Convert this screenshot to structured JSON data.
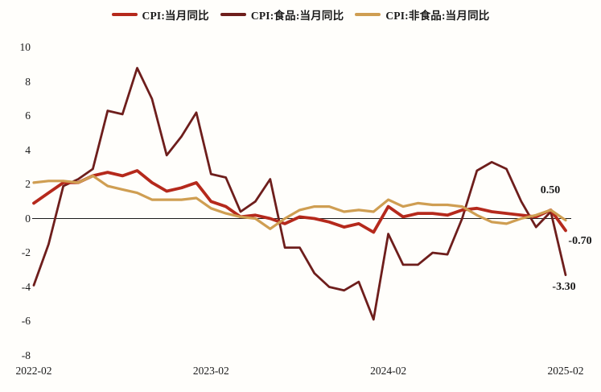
{
  "page": {
    "background": "#fffefb"
  },
  "chart_data": {
    "type": "line",
    "title": "",
    "xlabel": "",
    "ylabel": "",
    "grid": false,
    "legend_position": "top-center",
    "zero_line": true,
    "ylim": [
      -8,
      10
    ],
    "yticks": [
      "10",
      "8",
      "6",
      "4",
      "2",
      "0",
      "-2",
      "-4",
      "-6",
      "-8"
    ],
    "xticks": [
      "2022-02",
      "2023-02",
      "2024-02",
      "2025-02"
    ],
    "xtick_month_index": [
      0,
      12,
      24,
      36
    ],
    "x": [
      "2022-02",
      "2022-03",
      "2022-04",
      "2022-05",
      "2022-06",
      "2022-07",
      "2022-08",
      "2022-09",
      "2022-10",
      "2022-11",
      "2022-12",
      "2023-01",
      "2023-02",
      "2023-03",
      "2023-04",
      "2023-05",
      "2023-06",
      "2023-07",
      "2023-08",
      "2023-09",
      "2023-10",
      "2023-11",
      "2023-12",
      "2024-01",
      "2024-02",
      "2024-03",
      "2024-04",
      "2024-05",
      "2024-06",
      "2024-07",
      "2024-08",
      "2024-09",
      "2024-10",
      "2024-11",
      "2024-12",
      "2025-01",
      "2025-02"
    ],
    "series": [
      {
        "name": "CPI:当月同比",
        "color": "#b5291c",
        "values": [
          0.9,
          1.5,
          2.1,
          2.1,
          2.5,
          2.7,
          2.5,
          2.8,
          2.1,
          1.6,
          1.8,
          2.1,
          1.0,
          0.7,
          0.1,
          0.2,
          0.0,
          -0.3,
          0.1,
          0.0,
          -0.2,
          -0.5,
          -0.3,
          -0.8,
          0.7,
          0.1,
          0.3,
          0.3,
          0.2,
          0.5,
          0.6,
          0.4,
          0.3,
          0.2,
          0.1,
          0.5,
          -0.7
        ]
      },
      {
        "name": "CPI:食品:当月同比",
        "color": "#6e1e1c",
        "values": [
          -3.9,
          -1.5,
          1.9,
          2.3,
          2.9,
          6.3,
          6.1,
          8.8,
          7.0,
          3.7,
          4.8,
          6.2,
          2.6,
          2.4,
          0.4,
          1.0,
          2.3,
          -1.7,
          -1.7,
          -3.2,
          -4.0,
          -4.2,
          -3.7,
          -5.9,
          -0.9,
          -2.7,
          -2.7,
          -2.0,
          -2.1,
          0.0,
          2.8,
          3.3,
          2.9,
          1.0,
          -0.5,
          0.4,
          -3.3
        ]
      },
      {
        "name": "CPI:非食品:当月同比",
        "color": "#cf9e52",
        "values": [
          2.1,
          2.2,
          2.2,
          2.1,
          2.5,
          1.9,
          1.7,
          1.5,
          1.1,
          1.1,
          1.1,
          1.2,
          0.6,
          0.3,
          0.1,
          0.0,
          -0.6,
          0.0,
          0.5,
          0.7,
          0.7,
          0.4,
          0.5,
          0.4,
          1.1,
          0.7,
          0.9,
          0.8,
          0.8,
          0.7,
          0.2,
          -0.2,
          -0.3,
          0.0,
          0.2,
          0.5,
          -0.1
        ]
      }
    ],
    "annotations": [
      {
        "text": "0.50"
      },
      {
        "text": "-0.70"
      },
      {
        "text": "-3.30"
      }
    ]
  }
}
